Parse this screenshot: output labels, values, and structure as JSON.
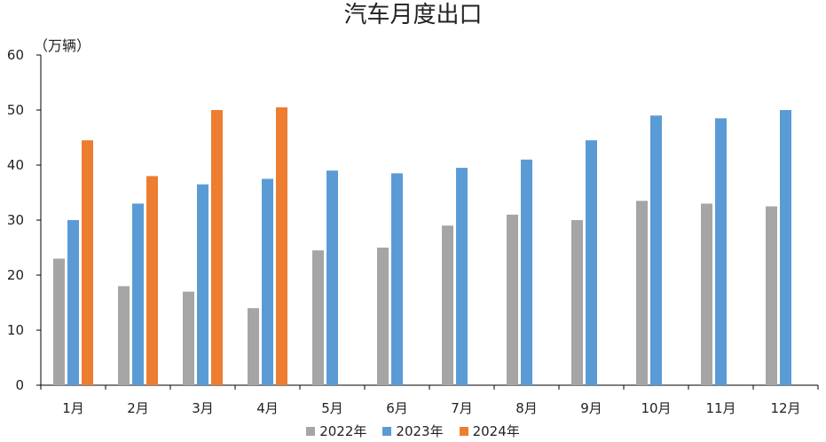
{
  "chart_data": {
    "type": "bar",
    "title": "汽车月度出口",
    "unit_label": "（万辆）",
    "categories": [
      "1月",
      "2月",
      "3月",
      "4月",
      "5月",
      "6月",
      "7月",
      "8月",
      "9月",
      "10月",
      "11月",
      "12月"
    ],
    "ylim": [
      0,
      60
    ],
    "yticks": [
      0,
      10,
      20,
      30,
      40,
      50,
      60
    ],
    "grid": false,
    "legend_position": "bottom",
    "series": [
      {
        "name": "2022年",
        "color": "#A5A5A5",
        "values": [
          23.0,
          18.0,
          17.0,
          14.0,
          24.5,
          25.0,
          29.0,
          31.0,
          30.0,
          33.5,
          33.0,
          32.5
        ]
      },
      {
        "name": "2023年",
        "color": "#5B9BD5",
        "values": [
          30.0,
          33.0,
          36.5,
          37.5,
          39.0,
          38.5,
          39.5,
          41.0,
          44.5,
          49.0,
          48.5,
          50.0
        ]
      },
      {
        "name": "2024年",
        "color": "#ED7D31",
        "values": [
          44.5,
          38.0,
          50.0,
          50.5,
          null,
          null,
          null,
          null,
          null,
          null,
          null,
          null
        ]
      }
    ]
  }
}
